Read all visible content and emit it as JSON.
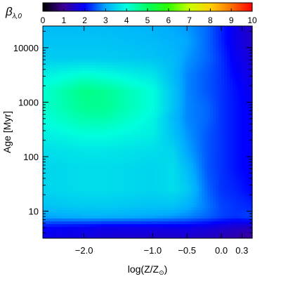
{
  "chart_data": {
    "type": "heatmap",
    "title": "",
    "colorbar": {
      "label_main": "β",
      "label_sub": "λ,0",
      "range": [
        0,
        10
      ],
      "ticks": [
        "0",
        "1",
        "2",
        "3",
        "4",
        "5",
        "6",
        "7",
        "8",
        "9",
        "10"
      ],
      "stops": [
        {
          "v": 0,
          "color": "#000000"
        },
        {
          "v": 1,
          "color": "#3c0096"
        },
        {
          "v": 2,
          "color": "#0000ff"
        },
        {
          "v": 3,
          "color": "#00aaff"
        },
        {
          "v": 4,
          "color": "#00ffdd"
        },
        {
          "v": 5,
          "color": "#00ff60"
        },
        {
          "v": 6,
          "color": "#30ff00"
        },
        {
          "v": 7,
          "color": "#c8ff00"
        },
        {
          "v": 8,
          "color": "#ffd000"
        },
        {
          "v": 9,
          "color": "#ff7000"
        },
        {
          "v": 10,
          "color": "#ff0000"
        }
      ]
    },
    "x_axis": {
      "label_main": "log(Z/Z",
      "label_sub": "⊙",
      "label_close": ")",
      "range": [
        -2.6,
        0.45
      ],
      "ticks": [
        {
          "value": -2.0,
          "label": "−2.0"
        },
        {
          "value": -1.0,
          "label": "−1.0"
        },
        {
          "value": -0.5,
          "label": "−0.5"
        },
        {
          "value": 0.0,
          "label": "0.0"
        },
        {
          "value": 0.3,
          "label": "0.3"
        }
      ]
    },
    "y_axis": {
      "label": "Age",
      "unit": "[Myr]",
      "scale": "log",
      "range": [
        3.2,
        25000
      ],
      "ticks": [
        {
          "value": 10,
          "label": "10"
        },
        {
          "value": 100,
          "label": "100"
        },
        {
          "value": 1000,
          "label": "1000"
        },
        {
          "value": 10000,
          "label": "10000"
        }
      ]
    },
    "values": {
      "x": [
        -2.6,
        -2.0,
        -1.7,
        -1.0,
        -0.7,
        -0.5,
        -0.2,
        0.0,
        0.2,
        0.45
      ],
      "log_age": [
        0.5,
        0.7,
        0.9,
        1.1,
        1.4,
        1.8,
        2.1,
        2.4,
        2.7,
        2.9,
        3.2,
        3.5,
        3.8,
        4.1,
        4.4
      ],
      "beta": [
        [
          1.8,
          1.7,
          1.6,
          1.5,
          1.5,
          1.5,
          1.4,
          1.3,
          1.2,
          1.0
        ],
        [
          2.0,
          1.9,
          1.8,
          1.8,
          1.8,
          1.8,
          1.7,
          1.6,
          1.5,
          1.4
        ],
        [
          3.0,
          3.1,
          3.1,
          3.0,
          2.9,
          2.8,
          2.6,
          2.4,
          2.3,
          2.4
        ],
        [
          3.3,
          3.4,
          3.4,
          3.3,
          3.3,
          3.1,
          2.7,
          2.4,
          2.3,
          2.2
        ],
        [
          3.5,
          3.6,
          3.6,
          3.5,
          3.6,
          3.4,
          2.6,
          2.3,
          2.2,
          2.0
        ],
        [
          3.5,
          3.6,
          3.6,
          3.5,
          3.6,
          3.2,
          2.5,
          2.3,
          2.1,
          1.9
        ],
        [
          3.6,
          3.7,
          3.7,
          3.6,
          3.5,
          3.0,
          2.5,
          2.3,
          2.1,
          1.9
        ],
        [
          3.8,
          4.0,
          4.0,
          3.8,
          3.3,
          2.9,
          2.5,
          2.3,
          2.1,
          1.9
        ],
        [
          4.0,
          4.4,
          4.4,
          3.9,
          3.2,
          2.8,
          2.6,
          2.3,
          2.1,
          1.9
        ],
        [
          4.1,
          4.6,
          4.6,
          4.0,
          3.3,
          2.8,
          2.6,
          2.3,
          2.1,
          1.9
        ],
        [
          4.1,
          4.7,
          4.6,
          4.0,
          3.3,
          2.8,
          2.5,
          2.3,
          2.1,
          1.8
        ],
        [
          3.8,
          4.1,
          4.0,
          3.7,
          3.2,
          2.8,
          2.5,
          2.3,
          2.0,
          1.7
        ],
        [
          3.4,
          3.4,
          3.4,
          3.3,
          3.2,
          2.9,
          2.6,
          2.3,
          1.9,
          1.6
        ],
        [
          3.3,
          3.3,
          3.3,
          3.2,
          3.1,
          3.0,
          2.6,
          2.2,
          1.8,
          1.5
        ],
        [
          3.2,
          3.2,
          3.2,
          3.1,
          3.0,
          2.9,
          2.6,
          2.2,
          1.8,
          1.4
        ]
      ]
    }
  }
}
